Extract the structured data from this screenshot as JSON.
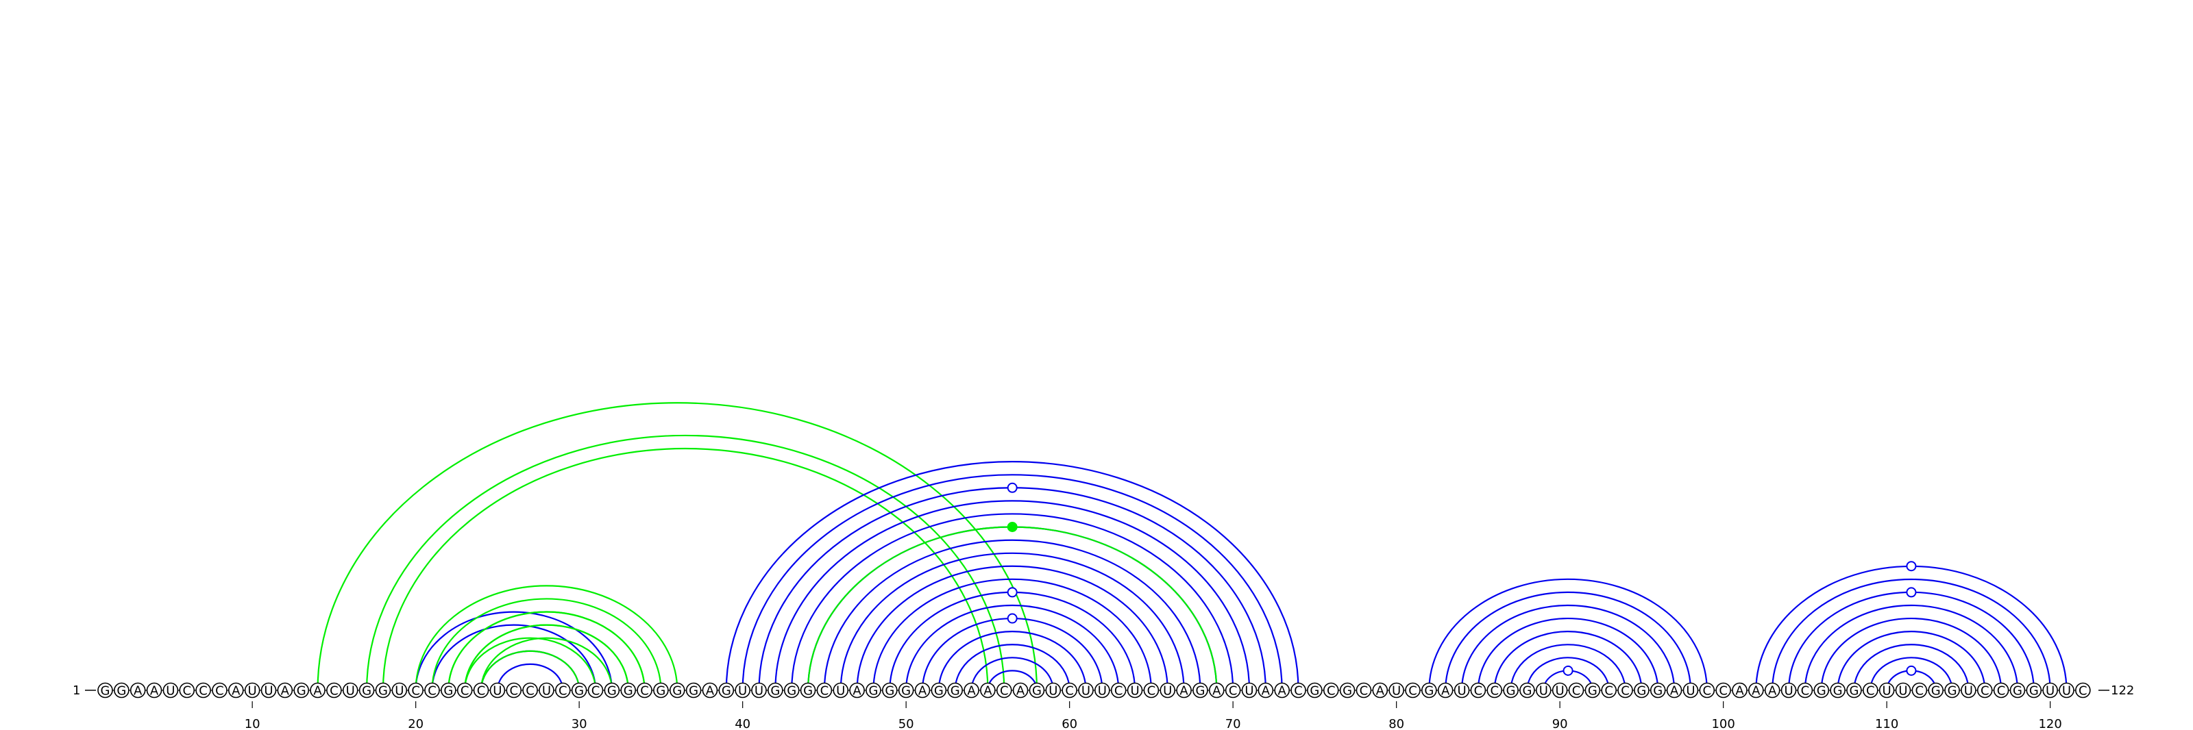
{
  "sequence": "GGAAUCCCAUUAGACUGGUCCGCCUCCUCGCGGCGGGAGUUGGGCUAGGGAGGAACAGUCUUCUCUAGACUAACGCGCAUCGAUCCGGUUCGCCGGAUCCAAAUCGGGCUUCGGUCCGGUUC",
  "end_labels": {
    "start": "1",
    "end": "122"
  },
  "tick_labels": [
    "10",
    "20",
    "30",
    "40",
    "50",
    "60",
    "70",
    "80",
    "90",
    "100",
    "110",
    "120"
  ],
  "ticks": [
    10,
    20,
    30,
    40,
    50,
    60,
    70,
    80,
    90,
    100,
    110,
    120
  ],
  "colors": {
    "blue": "#0000ee",
    "green": "#00ee00"
  },
  "helices": [
    {
      "color": "blue",
      "i": 20,
      "j": 32,
      "len": 2
    },
    {
      "color": "blue",
      "i": 24,
      "j": 30,
      "len": 2
    },
    {
      "color": "green",
      "i": 20,
      "j": 36,
      "len": 4
    },
    {
      "color": "green",
      "i": 22,
      "j": 34,
      "len": 3
    },
    {
      "color": "green",
      "i": 23,
      "j": 31,
      "len": 2
    },
    {
      "color": "green",
      "i": 14,
      "j": 58,
      "len": 1
    },
    {
      "color": "green",
      "i": 17,
      "j": 56,
      "len": 2
    },
    {
      "color": "blue",
      "i": 39,
      "j": 74,
      "len": 4
    },
    {
      "color": "blue",
      "i": 43,
      "j": 70,
      "len": 2
    },
    {
      "color": "green",
      "i": 44,
      "j": 69,
      "len": 1
    },
    {
      "color": "blue",
      "i": 45,
      "j": 68,
      "len": 11
    },
    {
      "color": "blue",
      "i": 82,
      "j": 99,
      "len": 6
    },
    {
      "color": "blue",
      "i": 88,
      "j": 93,
      "len": 2
    },
    {
      "color": "blue",
      "i": 102,
      "j": 121,
      "len": 8
    },
    {
      "color": "blue",
      "i": 110,
      "j": 113,
      "len": 1
    }
  ],
  "markers": [
    {
      "pos": 56.5,
      "height_rank": 1,
      "color": "blue",
      "filled": false,
      "helix_ref": [
        39,
        74,
        2
      ]
    },
    {
      "pos": 56.5,
      "color": "green",
      "filled": true,
      "helix_ref": [
        44,
        69,
        0
      ]
    },
    {
      "pos": 56.5,
      "color": "blue",
      "filled": false,
      "helix_ref": [
        45,
        68,
        4
      ]
    },
    {
      "pos": 56.5,
      "color": "blue",
      "filled": false,
      "helix_ref": [
        45,
        68,
        6
      ]
    },
    {
      "pos": 90.5,
      "color": "blue",
      "filled": false,
      "helix_ref": [
        88,
        93,
        1
      ]
    },
    {
      "pos": 111.5,
      "color": "blue",
      "filled": false,
      "helix_ref": [
        102,
        121,
        0
      ]
    },
    {
      "pos": 111.5,
      "color": "blue",
      "filled": false,
      "helix_ref": [
        102,
        121,
        2
      ]
    },
    {
      "pos": 111.5,
      "color": "blue",
      "filled": false,
      "helix_ref": [
        110,
        113,
        0
      ]
    }
  ]
}
